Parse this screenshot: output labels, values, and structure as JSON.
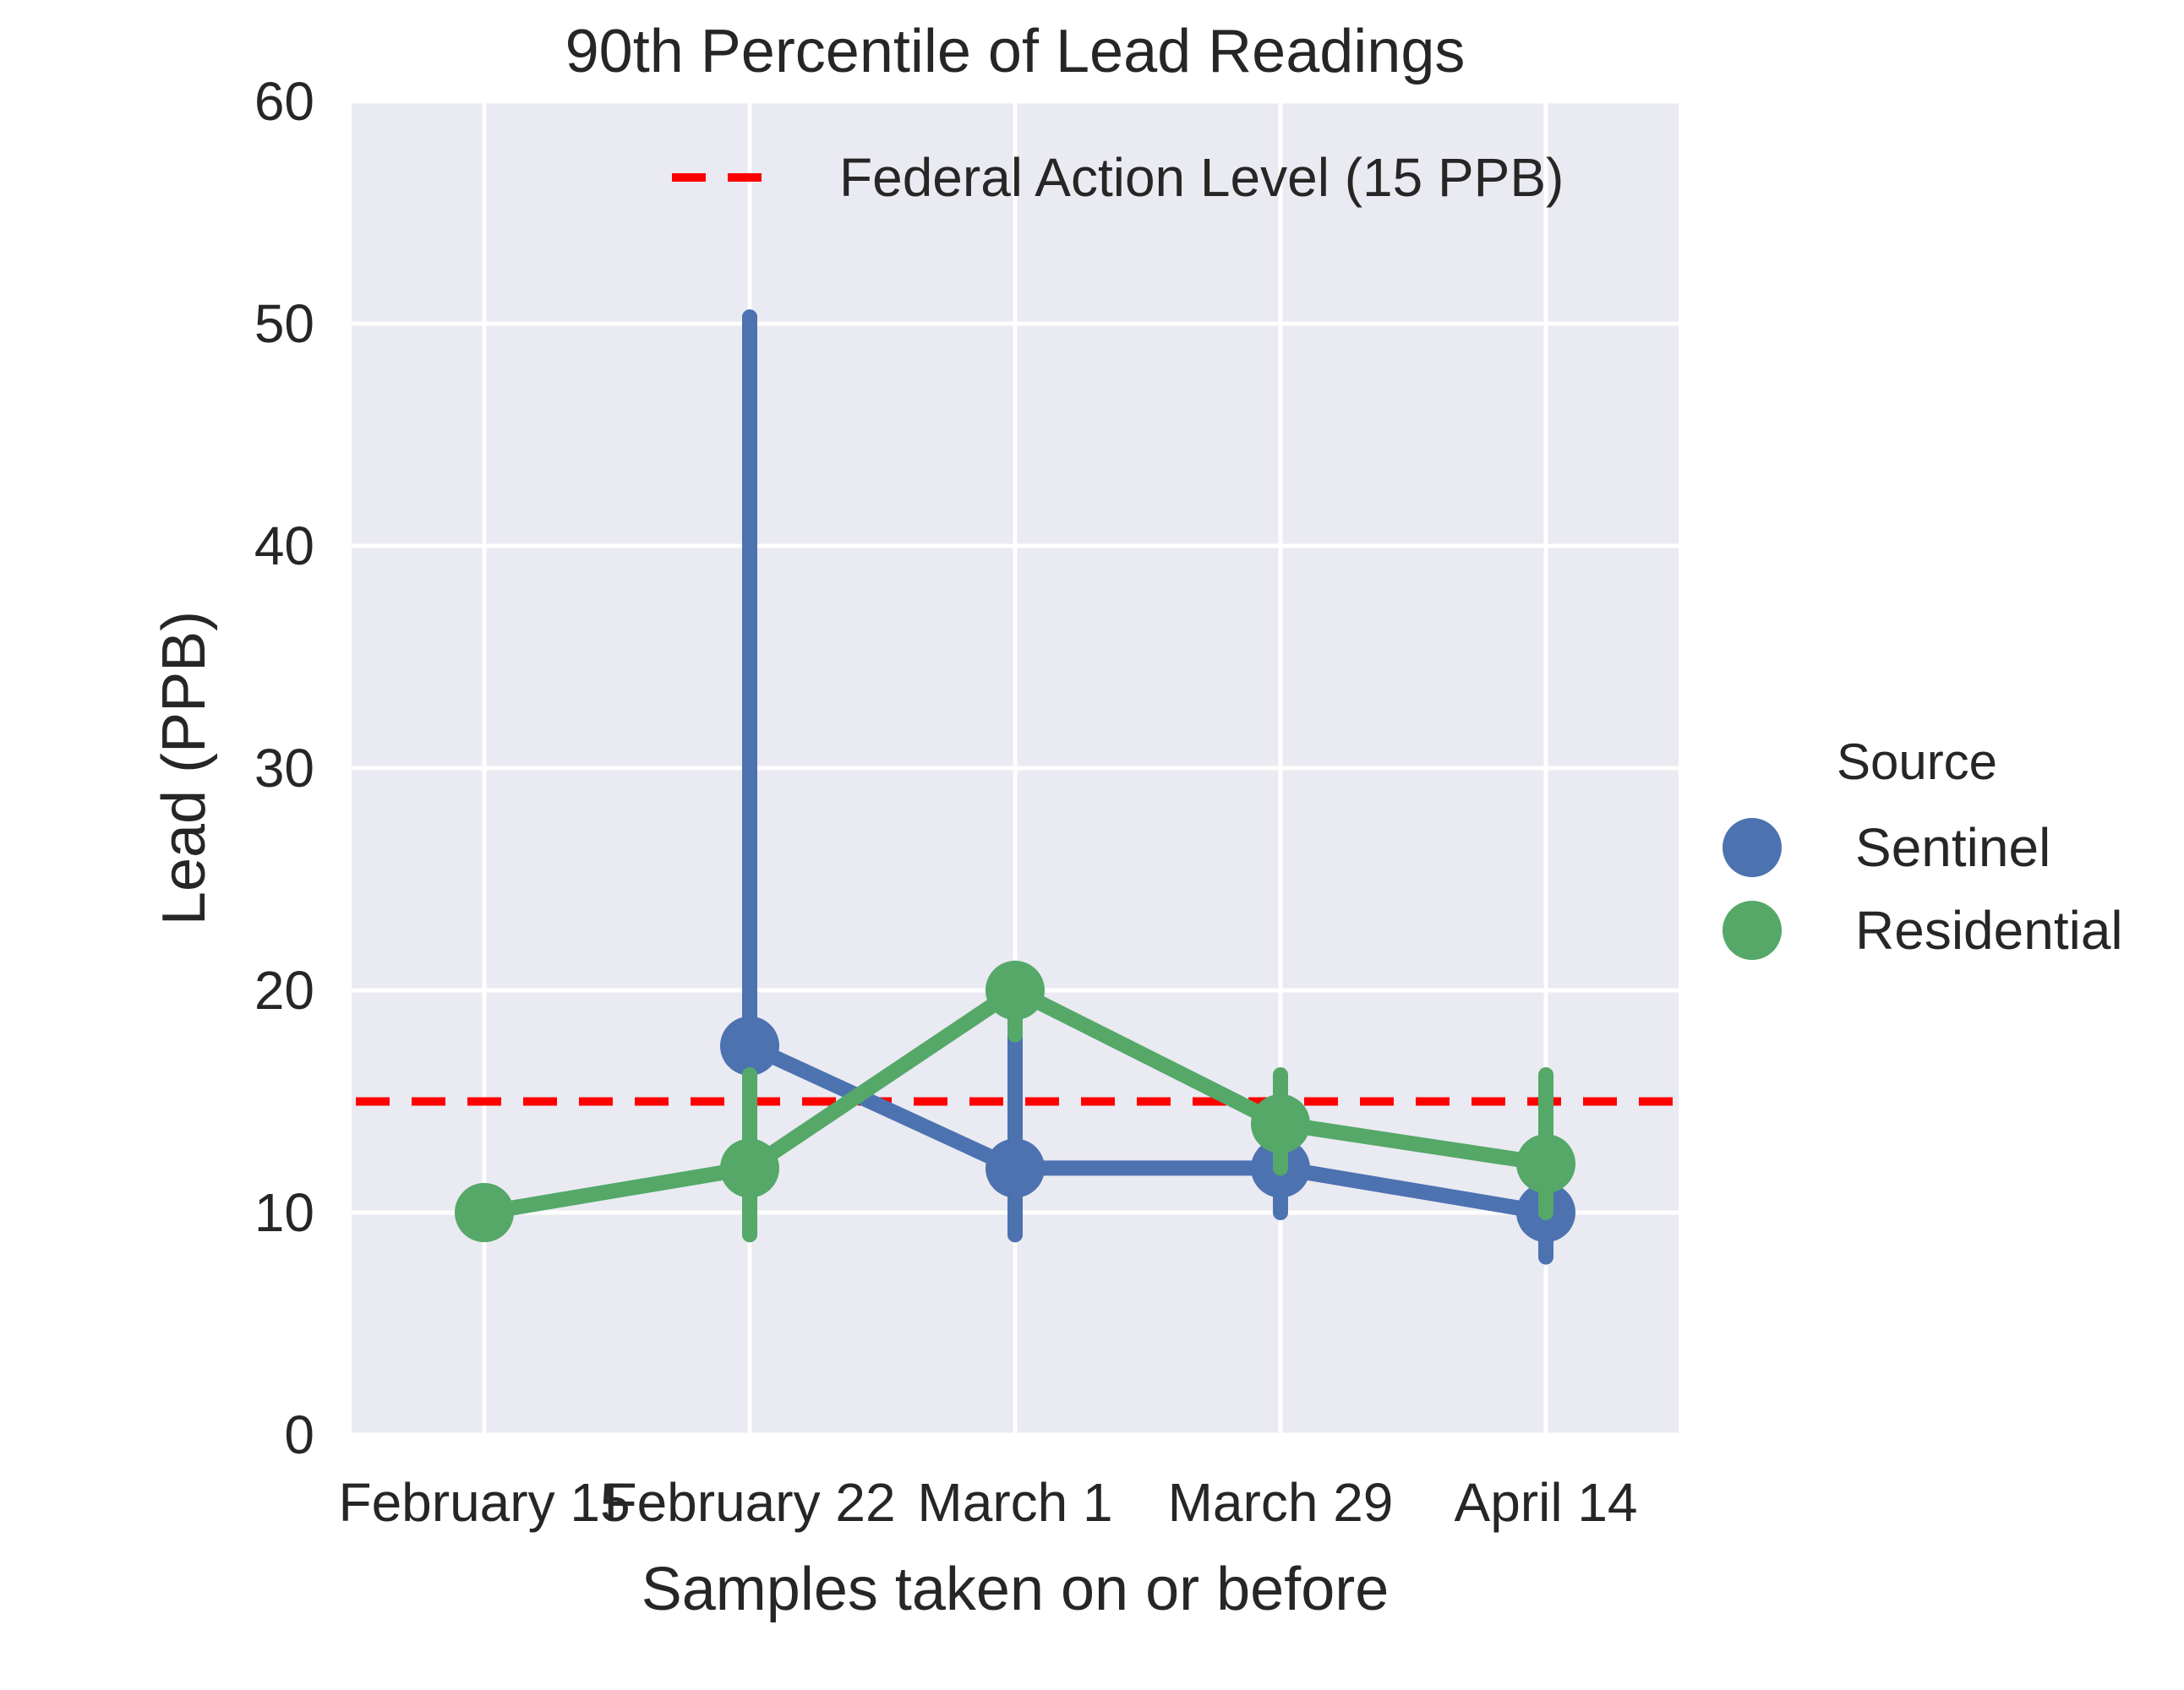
{
  "chart_data": {
    "type": "line",
    "title": "90th Percentile of Lead Readings",
    "xlabel": "Samples taken on or before",
    "ylabel": "Lead (PPB)",
    "categories": [
      "February 15",
      "February 22",
      "March 1",
      "March 29",
      "April 14"
    ],
    "ylim": [
      0,
      60
    ],
    "yticks": [
      "0",
      "10",
      "20",
      "30",
      "40",
      "50",
      "60"
    ],
    "grid": true,
    "background_color": "#eaeaf2",
    "reference_line": {
      "label": "Federal Action Level (15 PPB)",
      "value": 15,
      "color": "#ff0000",
      "style": "dashed"
    },
    "legend_title": "Source",
    "legend_position": "right",
    "reference_legend_position": "top-right",
    "series": [
      {
        "name": "Sentinel",
        "color": "#4c72b0",
        "values": [
          null,
          17.5,
          12,
          12,
          10
        ],
        "error_low": [
          null,
          16.5,
          9,
          10,
          8
        ],
        "error_high": [
          null,
          50.3,
          20,
          13.5,
          11
        ]
      },
      {
        "name": "Residential",
        "color": "#55a868",
        "values": [
          10,
          12,
          20,
          14,
          12.2
        ],
        "error_low": [
          null,
          9,
          18,
          12,
          10
        ],
        "error_high": [
          null,
          16.2,
          21,
          16.2,
          16.2
        ]
      }
    ]
  }
}
